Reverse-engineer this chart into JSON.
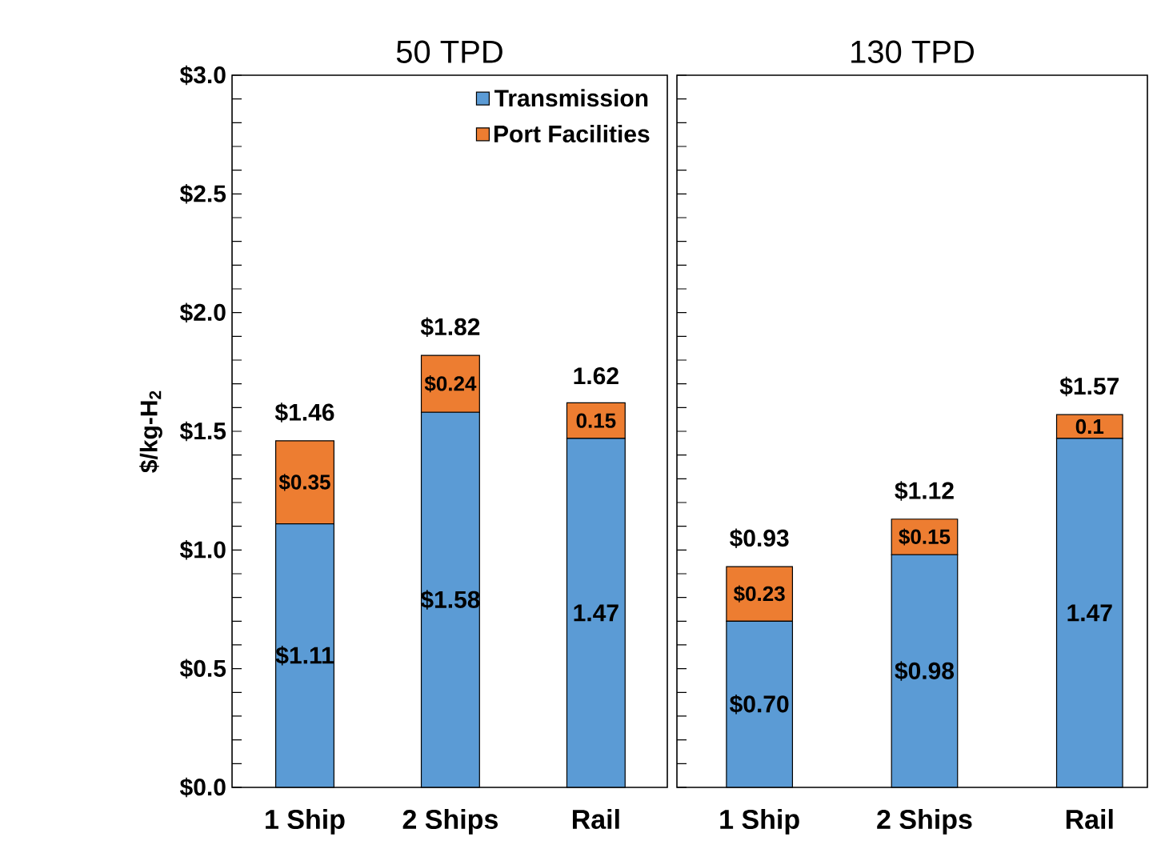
{
  "chart_data": [
    {
      "type": "bar",
      "stacked": true,
      "title": "50 TPD",
      "ylabel": "$/kg-H$_{2}$",
      "categories": [
        "1 Ship",
        "2 Ships",
        "Rail"
      ],
      "series": [
        {
          "name": "Transmission",
          "color": "#5b9bd5",
          "values": [
            1.11,
            1.58,
            1.47
          ],
          "value_labels": [
            "$1.11",
            "$1.58",
            "1.47"
          ]
        },
        {
          "name": "Port Facilities",
          "color": "#ed7d31",
          "values": [
            0.35,
            0.24,
            0.15
          ],
          "value_labels": [
            "$0.35",
            "$0.24",
            "0.15"
          ]
        }
      ],
      "totals": [
        "$1.46",
        "$1.82",
        "1.62"
      ],
      "ylim": [
        0,
        3
      ],
      "yticks": [
        {
          "value": 0,
          "label": "$0.0"
        },
        {
          "value": 0.5,
          "label": "$0.5"
        },
        {
          "value": 1,
          "label": "$1.0"
        },
        {
          "value": 1.5,
          "label": "$1.5"
        },
        {
          "value": 2,
          "label": "$2.0"
        },
        {
          "value": 2.5,
          "label": "$2.5"
        },
        {
          "value": 3,
          "label": "$3.0"
        }
      ],
      "legend": "top right"
    },
    {
      "type": "bar",
      "stacked": true,
      "title": "130 TPD",
      "categories": [
        "1 Ship",
        "2 Ships",
        "Rail"
      ],
      "series": [
        {
          "color": "#5b9bd5",
          "values": [
            0.7,
            0.98,
            1.47
          ],
          "value_labels": [
            "$0.70",
            "$0.98",
            "1.47"
          ]
        },
        {
          "color": "#ed7d31",
          "values": [
            0.23,
            0.15,
            0.1
          ],
          "value_labels": [
            "$0.23",
            "$0.15",
            "0.1"
          ]
        }
      ],
      "totals": [
        "$0.93",
        "$1.12",
        "$1.57"
      ],
      "ylim": [
        0,
        3
      ],
      "yticks": [
        0,
        0.5,
        1,
        1.5,
        2,
        2.5,
        3
      ],
      "tick_labels": "x"
    }
  ]
}
